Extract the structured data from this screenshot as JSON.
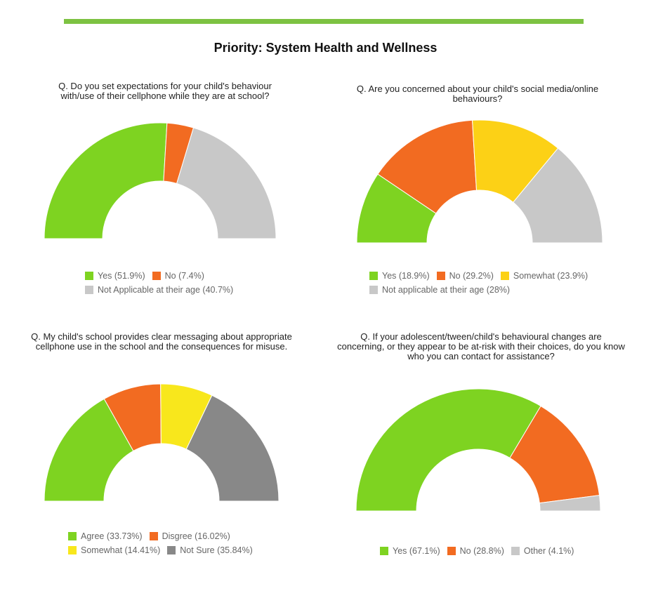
{
  "page_title": "Priority: System Health and Wellness",
  "accent_color": "#7dc242",
  "chart_data": [
    {
      "type": "pie",
      "style": "half-donut",
      "title": "Q. Do you set expectations for your child's behaviour with/use of their cellphone while they are at school?",
      "categories": [
        "Yes (51.9%)",
        "No (7.4%)",
        "Not Applicable at their age (40.7%)"
      ],
      "values": [
        51.9,
        7.4,
        40.7
      ],
      "colors": [
        "#7ed321",
        "#f26b21",
        "#c8c8c8"
      ],
      "legend_rows": [
        [
          0,
          1
        ],
        [
          2
        ]
      ]
    },
    {
      "type": "pie",
      "style": "half-donut",
      "title": "Q. Are you concerned about your child's social media/online behaviours?",
      "categories": [
        "Yes (18.9%)",
        "No (29.2%)",
        "Somewhat (23.9%)",
        "Not applicable at their age (28%)"
      ],
      "values": [
        18.9,
        29.2,
        23.9,
        28
      ],
      "colors": [
        "#7ed321",
        "#f26b21",
        "#fcd116",
        "#c8c8c8"
      ],
      "legend_rows": [
        [
          0,
          1,
          2
        ],
        [
          3
        ]
      ]
    },
    {
      "type": "pie",
      "style": "half-donut",
      "title": "Q. My child's school provides clear messaging about appropriate cellphone use in the school and the consequences for misuse.",
      "categories": [
        "Agree (33.73%)",
        "Disgree (16.02%)",
        "Somewhat (14.41%)",
        "Not Sure (35.84%)"
      ],
      "values": [
        33.73,
        16.02,
        14.41,
        35.84
      ],
      "colors": [
        "#7ed321",
        "#f26b21",
        "#f8e71c",
        "#888888"
      ],
      "legend_rows": [
        [
          0,
          1
        ],
        [
          2,
          3
        ]
      ]
    },
    {
      "type": "pie",
      "style": "half-donut",
      "title": "Q. If your adolescent/tween/child's behavioural changes are concerning, or they appear to be at-risk with their choices, do you know who you can contact for assistance?",
      "categories": [
        "Yes (67.1%)",
        "No (28.8%)",
        "Other (4.1%)"
      ],
      "values": [
        67.1,
        28.8,
        4.1
      ],
      "colors": [
        "#7ed321",
        "#f26b21",
        "#c8c8c8"
      ],
      "legend_rows": [
        [
          0,
          1,
          2
        ]
      ]
    }
  ]
}
